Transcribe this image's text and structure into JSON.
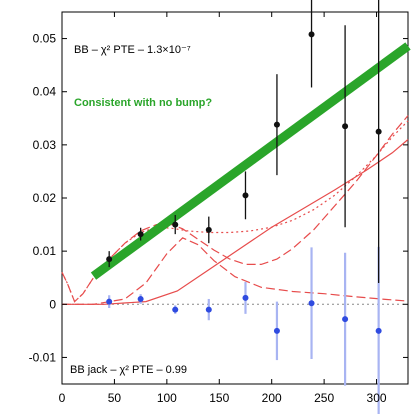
{
  "chart_data": {
    "type": "scatter",
    "xlim": [
      0,
      330
    ],
    "ylim": [
      -0.015,
      0.055
    ],
    "xticks": [
      0,
      50,
      100,
      150,
      200,
      250,
      300
    ],
    "yticks": [
      -0.01,
      0,
      0.01,
      0.02,
      0.03,
      0.04,
      0.05
    ],
    "xtick_labels": [
      "0",
      "50",
      "100",
      "150",
      "200",
      "250",
      "300"
    ],
    "ytick_labels": [
      "-0.01",
      "0",
      "0.01",
      "0.02",
      "0.03",
      "0.04",
      "0.05"
    ],
    "grid": false,
    "annotations": {
      "bb_pte_label": "BB – χ² PTE – 1.3×10⁻⁷",
      "consistent_label": "Consistent with no bump?",
      "bbjack_pte_label": "BB jack – χ² PTE – 0.99"
    },
    "series": [
      {
        "values": [
          {
            "x": 45,
            "y": 0.0085,
            "err": 0.0015
          },
          {
            "x": 75,
            "y": 0.0132,
            "err": 0.0012
          },
          {
            "x": 108,
            "y": 0.015,
            "err": 0.0018
          },
          {
            "x": 140,
            "y": 0.014,
            "err": 0.0025
          },
          {
            "x": 175,
            "y": 0.0205,
            "err": 0.0045
          },
          {
            "x": 205,
            "y": 0.0338,
            "err": 0.0095
          },
          {
            "x": 238,
            "y": 0.0508,
            "err": 0.01
          },
          {
            "x": 270,
            "y": 0.0335,
            "err": 0.019
          },
          {
            "x": 302,
            "y": 0.0325,
            "err": 0.0285
          }
        ]
      },
      {
        "values": [
          {
            "x": 45,
            "y": 0.0005,
            "err": 0.0012
          },
          {
            "x": 75,
            "y": 0.001,
            "err": 0.0009
          },
          {
            "x": 108,
            "y": -0.001,
            "err": 0.0008
          },
          {
            "x": 140,
            "y": -0.001,
            "err": 0.002
          },
          {
            "x": 175,
            "y": 0.0012,
            "err": 0.003
          },
          {
            "x": 205,
            "y": -0.005,
            "err": 0.0055
          },
          {
            "x": 238,
            "y": 0.0002,
            "err": 0.0105
          },
          {
            "x": 270,
            "y": -0.0028,
            "err": 0.0125
          },
          {
            "x": 302,
            "y": -0.005,
            "err": 0.0158
          }
        ]
      },
      {
        "type": "line",
        "x": [
          30,
          330
        ],
        "y": [
          0.0053,
          0.0486
        ]
      },
      {
        "type": "line",
        "x": [
          0,
          5,
          12,
          20,
          30,
          45,
          60,
          75,
          90,
          105,
          115,
          130,
          145,
          160,
          175,
          190,
          205,
          220,
          240,
          260,
          280,
          300,
          315,
          330
        ],
        "y": [
          0.006,
          0.004,
          0.0005,
          0.002,
          0.005,
          0.0085,
          0.0115,
          0.0138,
          0.015,
          0.015,
          0.0142,
          0.0122,
          0.0102,
          0.0085,
          0.0075,
          0.0075,
          0.0085,
          0.0105,
          0.014,
          0.0185,
          0.023,
          0.028,
          0.032,
          0.0355
        ]
      },
      {
        "type": "line",
        "x": [
          0,
          5,
          12,
          20,
          30,
          45,
          60,
          75,
          90,
          105,
          120,
          140,
          160,
          180,
          200,
          220,
          240,
          260,
          280,
          300,
          315,
          330
        ],
        "y": [
          0.006,
          0.004,
          0.0005,
          0.002,
          0.005,
          0.0085,
          0.0115,
          0.0135,
          0.0145,
          0.0143,
          0.0138,
          0.0135,
          0.0135,
          0.0138,
          0.0145,
          0.0158,
          0.0178,
          0.0205,
          0.024,
          0.028,
          0.0315,
          0.0345
        ]
      },
      {
        "type": "line",
        "x": [
          0,
          40,
          80,
          110,
          140,
          170,
          200,
          230,
          260,
          290,
          315,
          330
        ],
        "y": [
          0.0,
          0.0,
          0.0005,
          0.0025,
          0.0065,
          0.0105,
          0.0145,
          0.018,
          0.0215,
          0.0252,
          0.0285,
          0.031
        ]
      },
      {
        "type": "line",
        "x": [
          0,
          30,
          60,
          80,
          100,
          115,
          130,
          145,
          165,
          190,
          220,
          250,
          280,
          310,
          330
        ],
        "y": [
          0.0,
          0.0,
          0.001,
          0.004,
          0.0095,
          0.0125,
          0.0112,
          0.0082,
          0.0052,
          0.0032,
          0.0024,
          0.002,
          0.0014,
          0.0009,
          0.0006
        ]
      },
      {
        "type": "line",
        "x": [
          0,
          330
        ],
        "y": [
          0,
          0
        ]
      }
    ],
    "colors": {
      "black_points": "#111111",
      "blue_points": "#2f4be0",
      "blue_errorbars": "#a8b4f2",
      "green_line": "#2aa52a",
      "red_curves": "#e74c4c",
      "zero_line": "#888888"
    }
  }
}
